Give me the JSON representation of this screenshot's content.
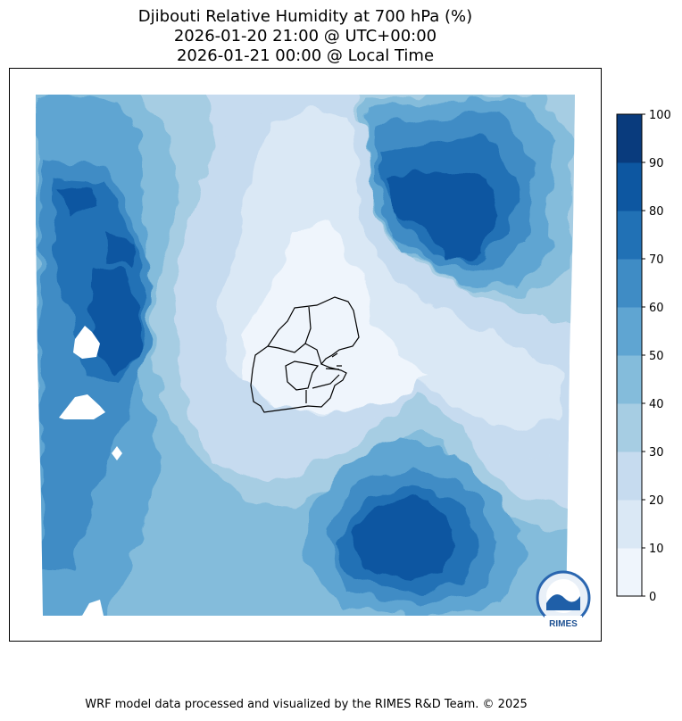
{
  "chart_data": {
    "type": "heatmap",
    "title": "Djibouti Relative Humidity at 700 hPa (%)",
    "subtitle_utc": "2026-01-20 21:00 @ UTC+00:00",
    "subtitle_local": "2026-01-21 00:00 @ Local Time",
    "colorbar": {
      "levels": [
        0,
        10,
        20,
        30,
        40,
        50,
        60,
        70,
        80,
        90,
        100
      ],
      "tick_labels": [
        "0",
        "10",
        "20",
        "30",
        "40",
        "50",
        "60",
        "70",
        "80",
        "90",
        "100"
      ],
      "colors": [
        "#eff5fc",
        "#dae8f5",
        "#c6dbef",
        "#a6cde3",
        "#84bcdb",
        "#5fa5d2",
        "#3f8cc5",
        "#2171b5",
        "#0d57a1",
        "#093b7d"
      ]
    },
    "grid": false,
    "legend_placement": "right"
  },
  "logo": {
    "text": "RIMES"
  },
  "footer": "WRF model data processed and visualized by the RIMES R&D Team. © 2025"
}
